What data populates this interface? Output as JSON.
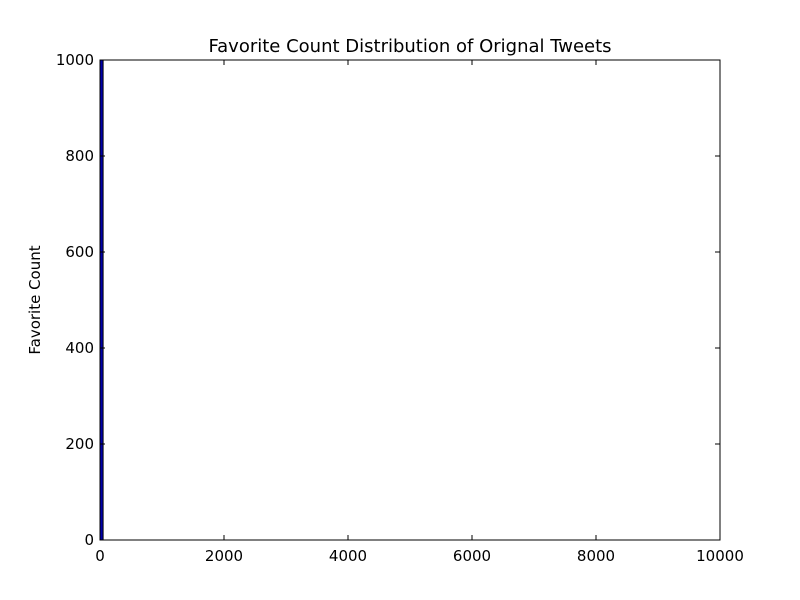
{
  "chart_data": {
    "type": "bar",
    "title": "Favorite Count Distribution of Orignal Tweets",
    "xlabel": "",
    "ylabel": "Favorite Count",
    "xlim": [
      0,
      10000
    ],
    "ylim": [
      0,
      1000
    ],
    "x_ticks": [
      0,
      2000,
      4000,
      6000,
      8000,
      10000
    ],
    "y_ticks": [
      0,
      200,
      400,
      600,
      800,
      1000
    ],
    "x_tick_labels": [
      "0",
      "2000",
      "4000",
      "6000",
      "8000",
      "10000"
    ],
    "y_tick_labels": [
      "0",
      "200",
      "400",
      "600",
      "800",
      "1000"
    ],
    "grid": false,
    "bar_color": "#0000aa",
    "bins": [
      {
        "start": 0,
        "end": 50,
        "value": 1000
      }
    ]
  }
}
